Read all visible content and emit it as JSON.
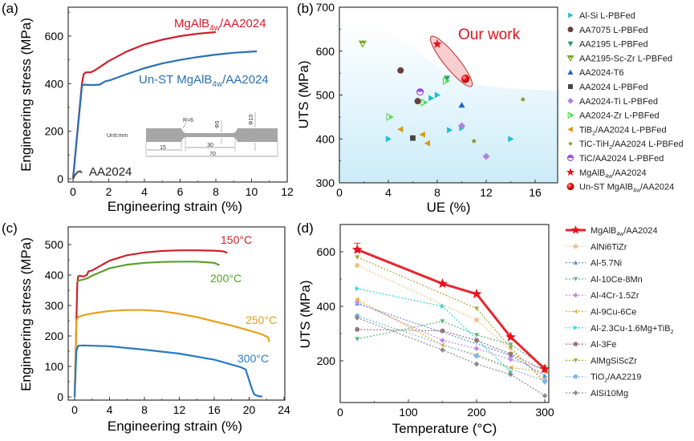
{
  "panels": {
    "a": "(a)",
    "b": "(b)",
    "c": "(c)",
    "d": "(d)"
  },
  "chart_data": [
    {
      "id": "a",
      "type": "line",
      "title": "",
      "xlabel": "Engineering strain (%)",
      "ylabel": "Engineering stress (MPa)",
      "xlim": [
        0,
        12
      ],
      "ylim": [
        0,
        720
      ],
      "xticks": [
        0,
        2,
        4,
        6,
        8,
        10,
        12
      ],
      "yticks": [
        0,
        200,
        400,
        600
      ],
      "series": [
        {
          "name": "MgAlB4w/AA2024",
          "label_main": "MgAlB",
          "label_sub": "4w",
          "label_tail": "/AA2024",
          "color": "#d0202a",
          "x": [
            0,
            0.5,
            0.6,
            0.7,
            1.0,
            1.2,
            1.5,
            2,
            3,
            4,
            5,
            6,
            7,
            8
          ],
          "y": [
            0,
            400,
            440,
            447,
            448,
            455,
            470,
            495,
            535,
            565,
            585,
            600,
            610,
            617
          ]
        },
        {
          "name": "Un-ST MgAlB4w/AA2024",
          "label_main": "Un-ST MgAlB",
          "label_sub": "4w",
          "label_tail": "/AA2024",
          "color": "#2a6fb5",
          "x": [
            0,
            0.5,
            0.6,
            1.0,
            1.5,
            1.8,
            2.1,
            3,
            4,
            5,
            6,
            7,
            8,
            9,
            10.3
          ],
          "y": [
            0,
            390,
            396,
            394,
            396,
            410,
            415,
            440,
            465,
            485,
            500,
            512,
            522,
            530,
            536
          ]
        },
        {
          "name": "AA2024",
          "label_main": "AA2024",
          "label_sub": "",
          "label_tail": "",
          "color": "#555555",
          "x": [
            0,
            0.1,
            0.25,
            0.4,
            0.5
          ],
          "y": [
            0,
            15,
            28,
            32,
            25
          ]
        }
      ],
      "inset": {
        "unit_label": "Unit:mm",
        "radius_label": "R=6",
        "dim_15": "15",
        "dim_30": "30",
        "dim_70": "70",
        "dia_small": "Φ5",
        "dia_large": "Φ10"
      }
    },
    {
      "id": "b",
      "type": "scatter",
      "xlabel": "UE (%)",
      "ylabel": "UTS (MPa)",
      "xlim": [
        0,
        18
      ],
      "ylim": [
        300,
        700
      ],
      "xticks": [
        0,
        4,
        8,
        12,
        16
      ],
      "yticks": [
        300,
        400,
        500,
        600,
        700
      ],
      "annotation": "Our work",
      "series": [
        {
          "name": "Al-Si L-PBFed",
          "marker": "tri-right",
          "color": "#1fbfcf",
          "points": [
            [
              4.0,
              400
            ],
            [
              7.5,
              493
            ],
            [
              8.0,
              500
            ],
            [
              9.0,
              420
            ],
            [
              10.0,
              425
            ],
            [
              14.0,
              400
            ]
          ]
        },
        {
          "name": "AA7075 L-PBFed",
          "marker": "circle",
          "color": "#6b3f3f",
          "points": [
            [
              5.0,
              556
            ],
            [
              6.4,
              486
            ]
          ]
        },
        {
          "name": "AA2195 L-PBFed",
          "marker": "tri-down",
          "color": "#2aa36a",
          "points": [
            [
              8.8,
              538
            ]
          ]
        },
        {
          "name": "AA2195-Sc-Zr L-PBFed",
          "marker": "tri-down-half",
          "color": "#7cab1e",
          "points": [
            [
              1.9,
              617
            ]
          ]
        },
        {
          "name": "AA2024-T6",
          "marker": "tri-up",
          "color": "#1f63c9",
          "points": [
            [
              10.0,
              477
            ]
          ]
        },
        {
          "name": "AA2024 L-PBFed",
          "marker": "square",
          "color": "#444444",
          "points": [
            [
              6.0,
              402
            ]
          ]
        },
        {
          "name": "AA2024-Ti L-PBFed",
          "marker": "diamond",
          "color": "#b27ee0",
          "points": [
            [
              10.0,
              430
            ],
            [
              12.0,
              360
            ]
          ]
        },
        {
          "name": "AA2024-Zr L-PBFed",
          "marker": "tri-right-half",
          "color": "#4fdc4f",
          "points": [
            [
              4.1,
              450
            ],
            [
              6.9,
              483
            ],
            [
              8.7,
              532
            ]
          ]
        },
        {
          "name": "TiB2/AA2024 L-PBFed",
          "marker": "tri-left",
          "color": "#d79a12",
          "points": [
            [
              5.0,
              422
            ],
            [
              6.8,
              410
            ],
            [
              7.2,
              390
            ]
          ]
        },
        {
          "name": "TiC-TiH2/AA2024 L-PBFed",
          "marker": "star-small",
          "color": "#8a8a16",
          "points": [
            [
              11.0,
              395
            ],
            [
              15.0,
              490
            ]
          ]
        },
        {
          "name": "TiC/AA2024 L-PBFed",
          "marker": "circle-half",
          "color": "#9b4ee0",
          "points": [
            [
              6.6,
              507
            ]
          ]
        },
        {
          "name": "MgAlB4w/AA2024",
          "marker": "star",
          "color": "#e8101c",
          "points": [
            [
              8.0,
              616
            ]
          ]
        },
        {
          "name": "Un-ST MgAlB4w/AA2024",
          "marker": "sphere",
          "color": "#e8101c",
          "points": [
            [
              10.3,
              537
            ]
          ]
        }
      ],
      "legend": [
        {
          "main": "Al-Si L-PBFed",
          "sub": "",
          "tail": ""
        },
        {
          "main": "AA7075 L-PBFed",
          "sub": "",
          "tail": ""
        },
        {
          "main": "AA2195 L-PBFed",
          "sub": "",
          "tail": ""
        },
        {
          "main": "AA2195-Sc-Zr L-PBFed",
          "sub": "",
          "tail": ""
        },
        {
          "main": "AA2024-T6",
          "sub": "",
          "tail": ""
        },
        {
          "main": "AA2024 L-PBFed",
          "sub": "",
          "tail": ""
        },
        {
          "main": "AA2024-Ti L-PBFed",
          "sub": "",
          "tail": ""
        },
        {
          "main": "AA2024-Zr L-PBFed",
          "sub": "",
          "tail": ""
        },
        {
          "main": "TiB",
          "sub": "2",
          "tail": "/AA2024 L-PBFed"
        },
        {
          "main": "TiC-TiH",
          "sub": "2",
          "tail": "/AA2024 L-PBFed"
        },
        {
          "main": "TiC/AA2024 L-PBFed",
          "sub": "",
          "tail": ""
        },
        {
          "main": "MgAlB",
          "sub": "4w",
          "tail": "/AA2024"
        },
        {
          "main": "Un-ST MgAlB",
          "sub": "4w",
          "tail": "/AA2024"
        }
      ],
      "legend_placement": "right-outside"
    },
    {
      "id": "c",
      "type": "line",
      "xlabel": "Engineering strain (%)",
      "ylabel": "Engineering stress (MPa)",
      "xlim": [
        -1,
        24
      ],
      "ylim": [
        -10,
        560
      ],
      "xticks": [
        0,
        4,
        8,
        12,
        16,
        20,
        24
      ],
      "yticks": [
        0,
        100,
        200,
        300,
        400,
        500
      ],
      "series": [
        {
          "name": "150°C",
          "color": "#d0202a",
          "x": [
            0,
            0.3,
            0.4,
            0.6,
            1.0,
            1.4,
            1.6,
            2,
            4,
            6,
            8,
            10,
            12,
            14,
            16,
            17.0,
            17.5
          ],
          "y": [
            0,
            370,
            395,
            398,
            395,
            400,
            412,
            415,
            447,
            465,
            474,
            479,
            481,
            481,
            480,
            478,
            473
          ]
        },
        {
          "name": "200°C",
          "color": "#5aa02c",
          "x": [
            0.3,
            0.5,
            1.0,
            1.5,
            2,
            4,
            6,
            8,
            10,
            12,
            14,
            16,
            16.6
          ],
          "y": [
            380,
            382,
            385,
            390,
            398,
            422,
            434,
            440,
            443,
            444,
            444,
            440,
            432
          ]
        },
        {
          "name": "250°C",
          "color": "#e6a01a",
          "x": [
            0,
            0.2,
            0.4,
            1,
            2,
            4,
            6,
            8,
            10,
            12,
            14,
            16,
            18,
            20,
            21.5,
            22.2,
            22.3
          ],
          "y": [
            0,
            250,
            262,
            268,
            274,
            282,
            285,
            285,
            281,
            273,
            262,
            248,
            234,
            218,
            205,
            195,
            180
          ]
        },
        {
          "name": "300°C",
          "color": "#2a7ac0",
          "x": [
            0,
            0.2,
            0.4,
            1,
            4,
            8,
            12,
            16,
            19,
            19.6,
            20.0,
            20.4,
            20.6,
            21.0,
            21.5
          ],
          "y": [
            0,
            150,
            168,
            169,
            166,
            155,
            142,
            122,
            98,
            90,
            55,
            20,
            8,
            3,
            1
          ]
        }
      ]
    },
    {
      "id": "d",
      "type": "line",
      "xlabel": "Temperature (°C)",
      "ylabel": "UTS (MPa)",
      "xlim": [
        0,
        300
      ],
      "ylim": [
        50,
        700
      ],
      "xticks": [
        0,
        100,
        200,
        300
      ],
      "yticks": [
        200,
        400,
        600
      ],
      "x": [
        25,
        150,
        200,
        250,
        300
      ],
      "series": [
        {
          "name": "MgAlB4w/AA2024",
          "main": "MgAlB",
          "sub": "4w",
          "tail": "/AA2024",
          "marker": "star",
          "color": "#e8262e",
          "solid": true,
          "values": [
            608,
            483,
            445,
            287,
            170
          ]
        },
        {
          "name": "AlNi6TiZr",
          "main": "AlNi6TiZr",
          "sub": "",
          "tail": "",
          "marker": "circle",
          "color": "#f2c28a",
          "values": [
            550,
            null,
            350,
            null,
            130
          ]
        },
        {
          "name": "Al-5.7Ni",
          "main": "Al-5.7Ni",
          "sub": "",
          "tail": "",
          "marker": "tri-up",
          "color": "#5b8fdc",
          "values": [
            410,
            null,
            null,
            220,
            145
          ]
        },
        {
          "name": "Al-10Ce-8Mn",
          "main": "Al-10Ce-8Mn",
          "sub": "",
          "tail": "",
          "marker": "tri-down",
          "color": "#58b878",
          "values": [
            280,
            345,
            295,
            260,
            178
          ]
        },
        {
          "name": "Al-4Cr-1.5Zr",
          "main": "Al-4Cr-1.5Zr",
          "sub": "",
          "tail": "",
          "marker": "diamond",
          "color": "#c48ae8",
          "values": [
            415,
            275,
            245,
            205,
            170
          ]
        },
        {
          "name": "Al-9Cu-6Ce",
          "main": "Al-9Cu-6Ce",
          "sub": "",
          "tail": "",
          "marker": "tri-left",
          "color": "#e8b030",
          "values": [
            425,
            258,
            222,
            175,
            160
          ]
        },
        {
          "name": "Al-2.3Cu-1.6Mg+TiB2",
          "main": "Al-2.3Cu-1.6Mg+TiB",
          "sub": "2",
          "tail": "",
          "marker": "tri-right",
          "color": "#35d6dc",
          "values": [
            465,
            400,
            null,
            160,
            null
          ]
        },
        {
          "name": "Al-3Fe",
          "main": "Al-3Fe",
          "sub": "",
          "tail": "",
          "marker": "circle",
          "color": "#9a7474",
          "values": [
            315,
            310,
            275,
            225,
            165
          ]
        },
        {
          "name": "AlMgSiScZr",
          "main": "AlMgSiScZr",
          "sub": "",
          "tail": "",
          "marker": "tri-down",
          "color": "#a8a83a",
          "values": [
            580,
            null,
            392,
            248,
            120
          ]
        },
        {
          "name": "TiO2/AA2219",
          "main": "TiO",
          "sub": "2",
          "tail": "/AA2219",
          "marker": "circle",
          "color": "#7ab8e8",
          "values": [
            365,
            null,
            218,
            null,
            125
          ]
        },
        {
          "name": "AlSi10Mg",
          "main": "AlSi10Mg",
          "sub": "",
          "tail": "",
          "marker": "diamond",
          "color": "#8a8a8a",
          "values": [
            358,
            240,
            188,
            150,
            72
          ]
        }
      ],
      "legend_placement": "right-outside"
    }
  ]
}
